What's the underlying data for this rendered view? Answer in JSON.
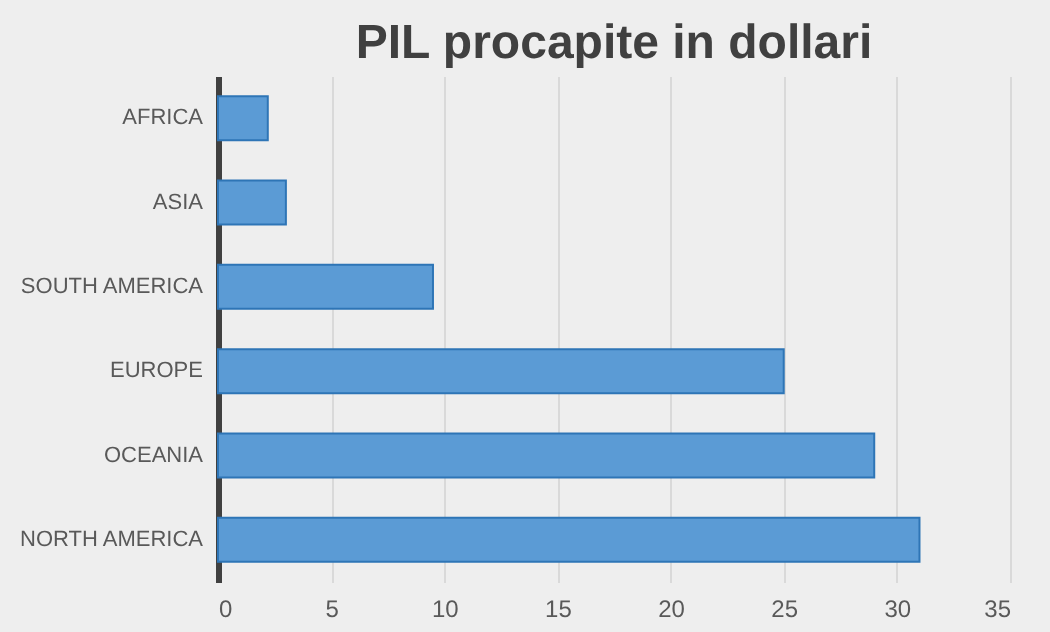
{
  "chart_data": {
    "type": "bar",
    "orientation": "horizontal",
    "title": "PIL procapite in dollari",
    "categories": [
      "AFRICA",
      "ASIA",
      "SOUTH AMERICA",
      "EUROPE",
      "OCEANIA",
      "NORTH AMERICA"
    ],
    "values": [
      2.2,
      3,
      9.5,
      25,
      29,
      31
    ],
    "color": "#5b9bd5",
    "xlim": [
      0,
      35
    ],
    "xticks": [
      0,
      5,
      10,
      15,
      20,
      25,
      30,
      35
    ],
    "grid": "x"
  }
}
